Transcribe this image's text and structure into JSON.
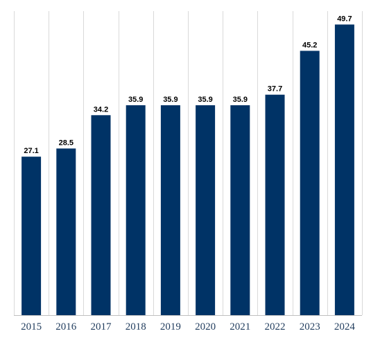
{
  "chart_data": {
    "type": "bar",
    "title": "",
    "xlabel": "",
    "ylabel": "",
    "categories": [
      "2015",
      "2016",
      "2017",
      "2018",
      "2019",
      "2020",
      "2021",
      "2022",
      "2023",
      "2024"
    ],
    "values": [
      27.1,
      28.5,
      34.2,
      35.9,
      35.9,
      35.9,
      35.9,
      37.7,
      45.2,
      49.7
    ],
    "value_labels": [
      "27.1",
      "28.5",
      "34.2",
      "35.9",
      "35.9",
      "35.9",
      "35.9",
      "37.7",
      "45.2",
      "49.7"
    ],
    "ylim": [
      0,
      52
    ],
    "grid": "vertical",
    "legend": "none",
    "colors": {
      "bar": "#003366",
      "grid": "#d9d9d9",
      "tick_text": "#1f3b5c",
      "value_text": "#000000"
    }
  }
}
